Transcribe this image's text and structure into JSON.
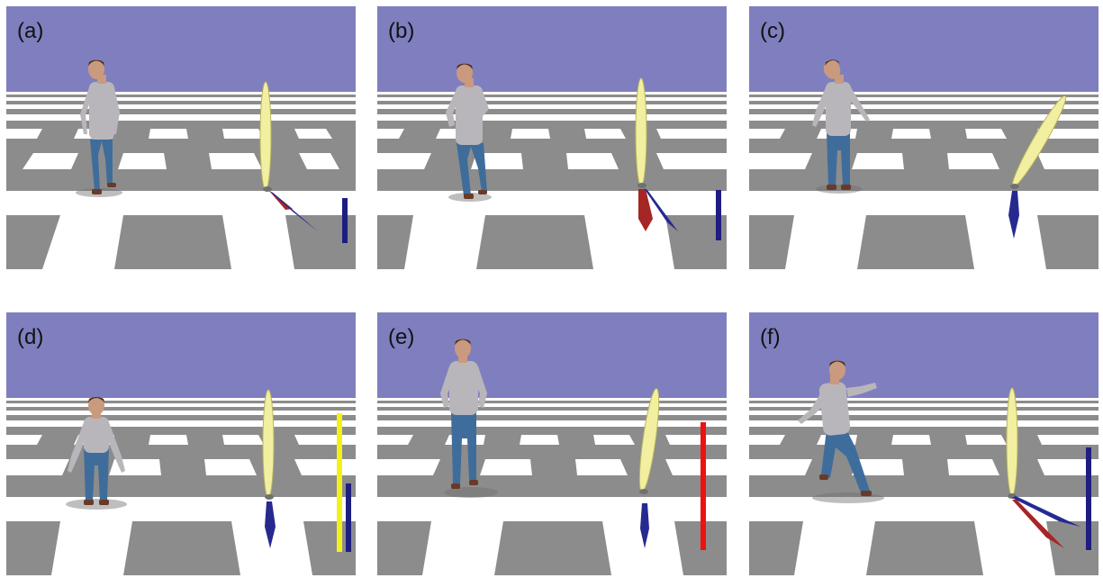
{
  "figure": {
    "colors": {
      "sky": "#7f7fbf",
      "floor_light": "#ffffff",
      "floor_dark": "#8c8c8c",
      "shirt": "#b9b6bb",
      "jeans": "#3f6d9b",
      "skin": "#c99a7e",
      "hair": "#4a2e1f",
      "shoes": "#6a3a26",
      "ellipsoid": "#f2f0a0",
      "arrow_blue": "#262a8f",
      "arrow_red": "#a62525",
      "bar_blue": "#1e1e80",
      "bar_yellow": "#f2f21a",
      "bar_red": "#ee1111"
    },
    "panels": [
      {
        "label": "(a)",
        "arrows": [
          "red",
          "blue"
        ],
        "bars": [
          "blue"
        ]
      },
      {
        "label": "(b)",
        "arrows": [
          "red",
          "blue"
        ],
        "bars": [
          "blue"
        ]
      },
      {
        "label": "(c)",
        "arrows": [
          "blue"
        ],
        "bars": []
      },
      {
        "label": "(d)",
        "arrows": [
          "blue"
        ],
        "bars": [
          "yellow",
          "blue"
        ]
      },
      {
        "label": "(e)",
        "arrows": [
          "blue"
        ],
        "bars": [
          "red"
        ]
      },
      {
        "label": "(f)",
        "arrows": [
          "red",
          "blue"
        ],
        "bars": [
          "blue"
        ]
      }
    ]
  }
}
